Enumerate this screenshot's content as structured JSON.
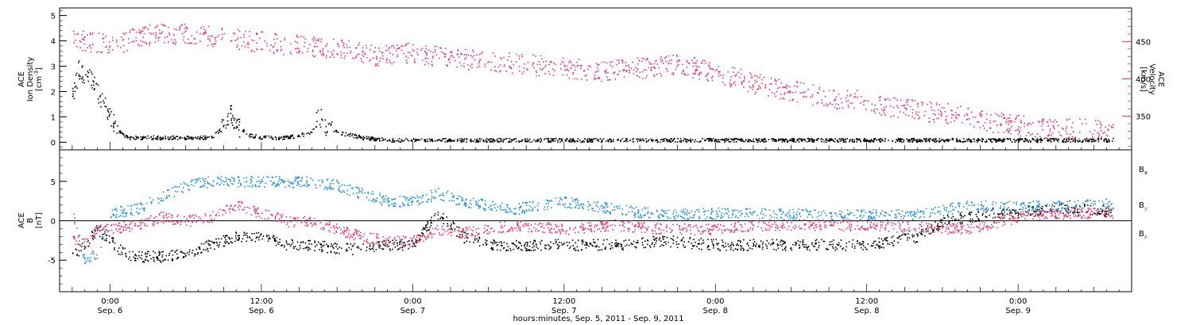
{
  "colors": {
    "black": "#000000",
    "pink": "#e8336b",
    "blue": "#1f8ee0"
  },
  "chart_data": [
    {
      "type": "scatter",
      "panel": "ace-ion-density-velocity",
      "ylabel_lines": [
        "ACE",
        "Ion Density"
      ],
      "ylabel_unit_base": "[cm",
      "ylabel_unit_sup": "-3",
      "ylabel_unit_end": "]",
      "ylim": [
        -0.3,
        5.3
      ],
      "y_ticks": [
        "0",
        "1",
        "2",
        "3",
        "4",
        "5"
      ],
      "y_tick_values": [
        0,
        1,
        2,
        3,
        4,
        5
      ],
      "right_ylabel_lines": [
        "ACE",
        "Velocity",
        "[km/s]"
      ],
      "right_ylim": [
        305,
        495
      ],
      "right_y_ticks": [
        "350",
        "400",
        "450"
      ],
      "right_y_tick_values": [
        350,
        400,
        450
      ],
      "series": [
        {
          "name": "Ion Density",
          "color": "black",
          "axis": "left",
          "x_hours": [
            -3,
            -2.5,
            -2,
            -1.5,
            -1,
            -0.5,
            0,
            0.5,
            1,
            1.5,
            2,
            4,
            6,
            8,
            9,
            9.5,
            10,
            11,
            12,
            14,
            16,
            16.5,
            17,
            18,
            20,
            22,
            24,
            28,
            32,
            36,
            40,
            44,
            48,
            52,
            56,
            60,
            64,
            68,
            72,
            76,
            79.5
          ],
          "values": [
            1.8,
            2.9,
            2.6,
            2.5,
            2.0,
            1.5,
            1.0,
            0.6,
            0.3,
            0.2,
            0.2,
            0.2,
            0.2,
            0.2,
            0.6,
            1.2,
            0.7,
            0.3,
            0.2,
            0.2,
            0.4,
            1.1,
            0.7,
            0.4,
            0.2,
            0.1,
            0.1,
            0.1,
            0.1,
            0.1,
            0.1,
            0.1,
            0.1,
            0.1,
            0.1,
            0.1,
            0.1,
            0.1,
            0.1,
            0.1,
            0.1
          ]
        },
        {
          "name": "Velocity",
          "color": "pink",
          "axis": "right",
          "x_hours": [
            -3,
            0,
            3,
            6,
            9,
            12,
            15,
            18,
            21,
            24,
            27,
            30,
            33,
            36,
            39,
            42,
            45,
            48,
            51,
            54,
            57,
            60,
            63,
            66,
            69,
            72,
            75,
            79.5
          ],
          "values": [
            455,
            445,
            460,
            460,
            455,
            450,
            445,
            440,
            432,
            435,
            428,
            425,
            420,
            415,
            410,
            415,
            420,
            410,
            395,
            385,
            375,
            370,
            360,
            355,
            345,
            338,
            335,
            332
          ]
        }
      ]
    },
    {
      "type": "scatter",
      "panel": "ace-magnetic-field",
      "ylabel_lines": [
        "ACE",
        "B",
        "[nT]"
      ],
      "ylim": [
        -9,
        9
      ],
      "y_ticks": [
        "-5",
        "0",
        "5"
      ],
      "y_tick_values": [
        -5,
        0,
        5
      ],
      "legend": [
        {
          "base": "B",
          "sub": "x",
          "color": "black"
        },
        {
          "base": "B",
          "sub": "y",
          "color": "blue"
        },
        {
          "base": "B",
          "sub": "z",
          "color": "pink"
        }
      ],
      "series": [
        {
          "name": "Bx",
          "color": "black",
          "x_hours": [
            -3,
            -2,
            -1,
            0,
            1,
            2,
            4,
            6,
            8,
            10,
            12,
            14,
            16,
            18,
            20,
            22,
            24,
            26,
            28,
            30,
            32,
            36,
            40,
            44,
            48,
            52,
            56,
            60,
            62,
            64,
            66,
            68,
            70,
            72,
            74,
            76,
            78,
            79.5
          ],
          "values": [
            -4.5,
            -3,
            -1,
            -2.5,
            -4,
            -4.5,
            -4.5,
            -4,
            -3,
            -2,
            -2,
            -3,
            -3,
            -3.5,
            -3.5,
            -3,
            -3,
            1,
            -2,
            -3,
            -3,
            -3,
            -3,
            -2.5,
            -3.0,
            -3.0,
            -3.0,
            -3.0,
            -2.5,
            -2.0,
            0.0,
            0.5,
            1.0,
            1.0,
            1.5,
            1.5,
            1.5,
            1.0
          ]
        },
        {
          "name": "By",
          "color": "blue",
          "x_hours": [
            -3,
            -2,
            -1,
            0,
            2,
            4,
            6,
            8,
            10,
            12,
            14,
            16,
            18,
            20,
            22,
            24,
            26,
            28,
            30,
            32,
            36,
            40,
            44,
            48,
            52,
            56,
            60,
            64,
            68,
            72,
            76,
            79.5
          ],
          "values": [
            1.0,
            -5.0,
            -4.0,
            1.0,
            1.5,
            3.0,
            4.5,
            5.0,
            5.0,
            5.0,
            5.0,
            5.0,
            4.5,
            3.5,
            2.5,
            2.5,
            3.5,
            2.5,
            2.0,
            1.5,
            2.5,
            1.5,
            0.8,
            1.0,
            1.0,
            0.8,
            0.8,
            0.8,
            2.0,
            1.8,
            2.0,
            2.2
          ]
        },
        {
          "name": "Bz",
          "color": "pink",
          "x_hours": [
            -3,
            -2,
            -1,
            0,
            2,
            4,
            6,
            8,
            10,
            12,
            14,
            16,
            18,
            20,
            22,
            24,
            26,
            28,
            30,
            32,
            36,
            40,
            44,
            48,
            52,
            56,
            60,
            64,
            68,
            72,
            76,
            79.5
          ],
          "values": [
            -2.0,
            -3.0,
            -1.0,
            -1.0,
            -0.5,
            0.5,
            0.0,
            0.5,
            2.0,
            1.0,
            0.0,
            0.0,
            -1.0,
            -2.0,
            -2.5,
            -2.5,
            -1.0,
            -1.5,
            -1.0,
            -0.5,
            -1.0,
            -0.5,
            -1.0,
            -1.0,
            -0.5,
            -0.5,
            -0.5,
            -0.8,
            -1.0,
            0.5,
            1.0,
            1.0
          ]
        }
      ]
    }
  ],
  "x_axis": {
    "xlim_hours": [
      -4,
      81
    ],
    "tick_hours": [
      0,
      12,
      24,
      36,
      48,
      60,
      72
    ],
    "tick_time_labels": [
      "0:00",
      "12:00",
      "0:00",
      "12:00",
      "0:00",
      "12:00",
      "0:00"
    ],
    "tick_date_labels": [
      "Sep. 6",
      "Sep. 6",
      "Sep. 7",
      "Sep. 7",
      "Sep. 8",
      "Sep. 8",
      "Sep. 9"
    ],
    "title": "hours:minutes, Sep. 5, 2011 - Sep. 9, 2011"
  }
}
